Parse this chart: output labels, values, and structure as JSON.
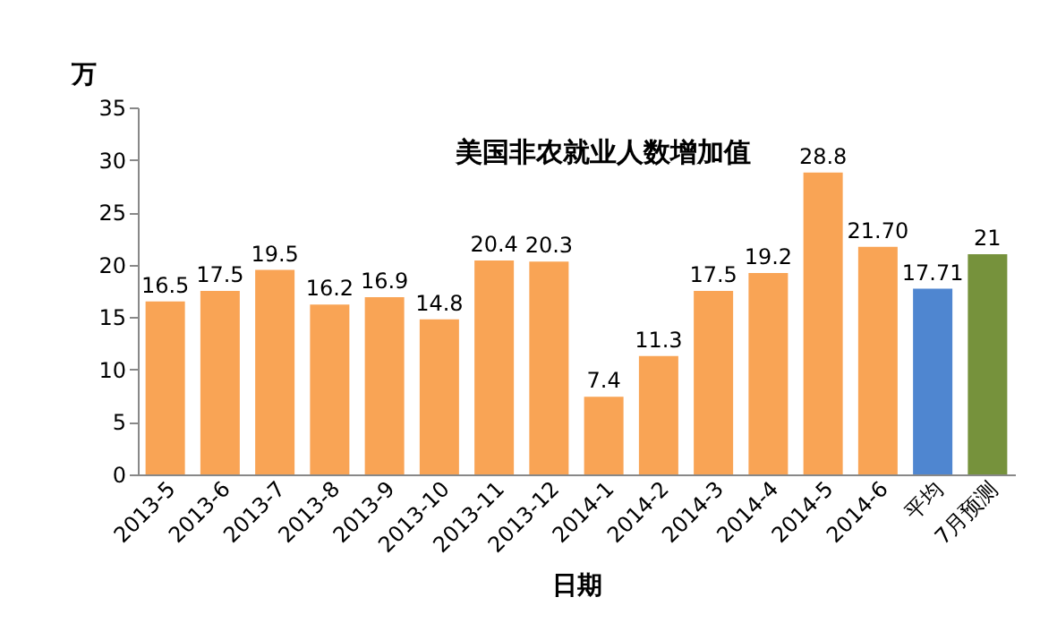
{
  "chart_data": {
    "type": "bar",
    "title": "美国非农就业人数增加值",
    "xlabel": "日期",
    "ylabel": "万",
    "categories": [
      "2013-5",
      "2013-6",
      "2013-7",
      "2013-8",
      "2013-9",
      "2013-10",
      "2013-11",
      "2013-12",
      "2014-1",
      "2014-2",
      "2014-3",
      "2014-4",
      "2014-5",
      "2014-6",
      "平均",
      "7月预测"
    ],
    "values": [
      16.5,
      17.5,
      19.5,
      16.2,
      16.9,
      14.8,
      20.4,
      20.3,
      7.4,
      11.3,
      17.5,
      19.2,
      28.8,
      21.7,
      17.71,
      21
    ],
    "value_labels": [
      "16.5",
      "17.5",
      "19.5",
      "16.2",
      "16.9",
      "14.8",
      "20.4",
      "20.3",
      "7.4",
      "11.3",
      "17.5",
      "19.2",
      "28.8",
      "21.70",
      "17.71",
      "21"
    ],
    "colors": [
      "#f9a455",
      "#f9a455",
      "#f9a455",
      "#f9a455",
      "#f9a455",
      "#f9a455",
      "#f9a455",
      "#f9a455",
      "#f9a455",
      "#f9a455",
      "#f9a455",
      "#f9a455",
      "#f9a455",
      "#f9a455",
      "#4f86d0",
      "#76923c"
    ],
    "ylim": [
      0,
      35
    ],
    "yticks": [
      0,
      5,
      10,
      15,
      20,
      25,
      30,
      35
    ],
    "grid": false
  }
}
